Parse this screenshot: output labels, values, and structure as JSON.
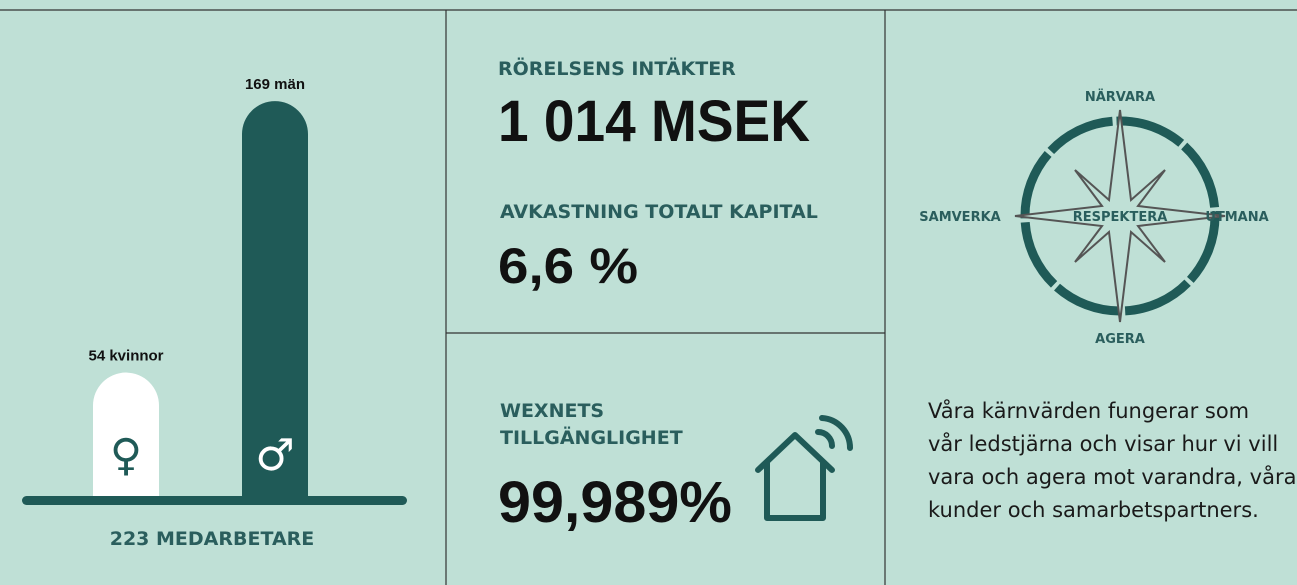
{
  "employees": {
    "bars": [
      {
        "label": "54 kvinnor",
        "value": 54
      },
      {
        "label": "169 män",
        "value": 169
      }
    ],
    "total_label": "223 MEDARBETARE"
  },
  "revenue": {
    "heading": "RÖRELSENS INTÄKTER",
    "value": "1 014 MSEK"
  },
  "return": {
    "heading": "AVKASTNING TOTALT KAPITAL",
    "value": "6,6 %"
  },
  "availability": {
    "heading_lines": [
      "WEXNETS",
      "TILLGÄNGLIGHET"
    ],
    "value": "99,989%"
  },
  "values": {
    "north": "NÄRVARA",
    "west": "SAMVERKA",
    "center": "RESPEKTERA",
    "east": "UTMANA",
    "south": "AGERA",
    "text_lines": [
      "Våra kärnvärden fungerar som",
      "vår ledstjärna och visar hur vi vill",
      "vara och agera mot varandra, våra",
      "kunder och samarbetspartners."
    ]
  }
}
